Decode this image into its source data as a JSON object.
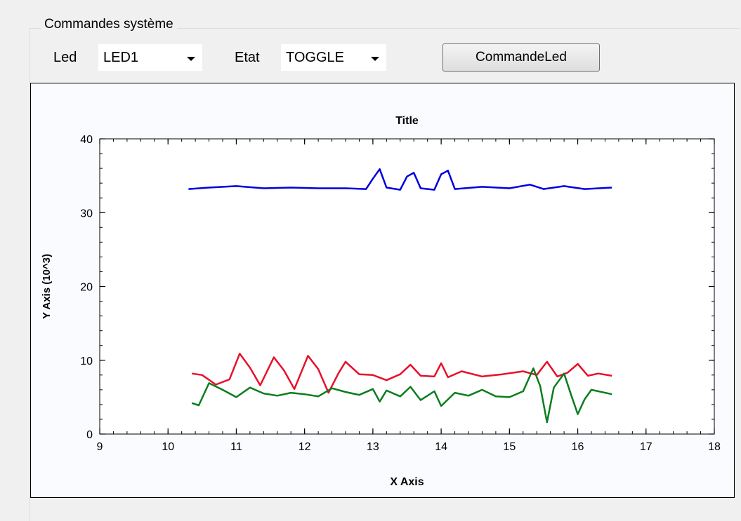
{
  "group": {
    "title": "Commandes système"
  },
  "led": {
    "label": "Led",
    "selected": "LED1"
  },
  "etat": {
    "label": "Etat",
    "selected": "TOGGLE"
  },
  "button": {
    "label": "CommandeLed"
  },
  "colors": {
    "blue": "#0000e0",
    "red": "#e8102a",
    "green": "#0a7d1e"
  },
  "chart_data": {
    "type": "line",
    "title": "Title",
    "xlabel": "X Axis",
    "ylabel": "Y Axis (10^3)",
    "xlim": [
      9,
      18
    ],
    "ylim": [
      0,
      40
    ],
    "xticks": [
      9,
      10,
      11,
      12,
      13,
      14,
      15,
      16,
      17,
      18
    ],
    "yticks": [
      0,
      10,
      20,
      30,
      40
    ],
    "series": [
      {
        "color": "#0000e0",
        "x": [
          10.3,
          10.6,
          11.0,
          11.4,
          11.8,
          12.2,
          12.6,
          12.9,
          13.0,
          13.1,
          13.2,
          13.4,
          13.5,
          13.6,
          13.7,
          13.9,
          14.0,
          14.1,
          14.2,
          14.6,
          15.0,
          15.3,
          15.5,
          15.8,
          16.1,
          16.5
        ],
        "y": [
          33.2,
          33.4,
          33.6,
          33.3,
          33.4,
          33.3,
          33.3,
          33.2,
          34.6,
          35.9,
          33.4,
          33.1,
          34.9,
          35.4,
          33.3,
          33.1,
          35.2,
          35.7,
          33.2,
          33.5,
          33.3,
          33.8,
          33.2,
          33.6,
          33.2,
          33.4
        ]
      },
      {
        "color": "#e8102a",
        "x": [
          10.35,
          10.5,
          10.7,
          10.9,
          11.05,
          11.2,
          11.35,
          11.55,
          11.7,
          11.85,
          12.05,
          12.2,
          12.35,
          12.5,
          12.6,
          12.8,
          13.0,
          13.2,
          13.4,
          13.55,
          13.7,
          13.9,
          14.0,
          14.1,
          14.3,
          14.6,
          14.9,
          15.2,
          15.4,
          15.55,
          15.7,
          15.85,
          16.0,
          16.15,
          16.3,
          16.5
        ],
        "y": [
          8.2,
          8.0,
          6.7,
          7.4,
          10.9,
          9.0,
          6.6,
          10.4,
          8.6,
          6.1,
          10.6,
          8.8,
          5.6,
          8.3,
          9.8,
          8.1,
          8.0,
          7.3,
          8.1,
          9.4,
          7.9,
          7.8,
          9.6,
          7.7,
          8.5,
          7.8,
          8.1,
          8.5,
          8.0,
          9.8,
          7.8,
          8.3,
          9.5,
          7.9,
          8.2,
          7.9
        ]
      },
      {
        "color": "#0a7d1e",
        "x": [
          10.35,
          10.45,
          10.6,
          10.8,
          11.0,
          11.2,
          11.4,
          11.6,
          11.8,
          12.0,
          12.2,
          12.4,
          12.6,
          12.8,
          13.0,
          13.1,
          13.2,
          13.4,
          13.55,
          13.7,
          13.9,
          14.0,
          14.2,
          14.4,
          14.6,
          14.8,
          15.0,
          15.2,
          15.35,
          15.45,
          15.55,
          15.65,
          15.8,
          15.9,
          16.0,
          16.1,
          16.2,
          16.5
        ],
        "y": [
          4.2,
          3.9,
          6.9,
          6.0,
          5.0,
          6.3,
          5.5,
          5.2,
          5.6,
          5.4,
          5.1,
          6.2,
          5.7,
          5.3,
          6.1,
          4.4,
          5.9,
          5.1,
          6.4,
          4.6,
          5.8,
          3.8,
          5.6,
          5.2,
          6.0,
          5.1,
          5.0,
          5.8,
          8.9,
          6.5,
          1.6,
          6.3,
          8.2,
          5.4,
          2.7,
          4.7,
          6.0,
          5.4
        ]
      }
    ]
  }
}
